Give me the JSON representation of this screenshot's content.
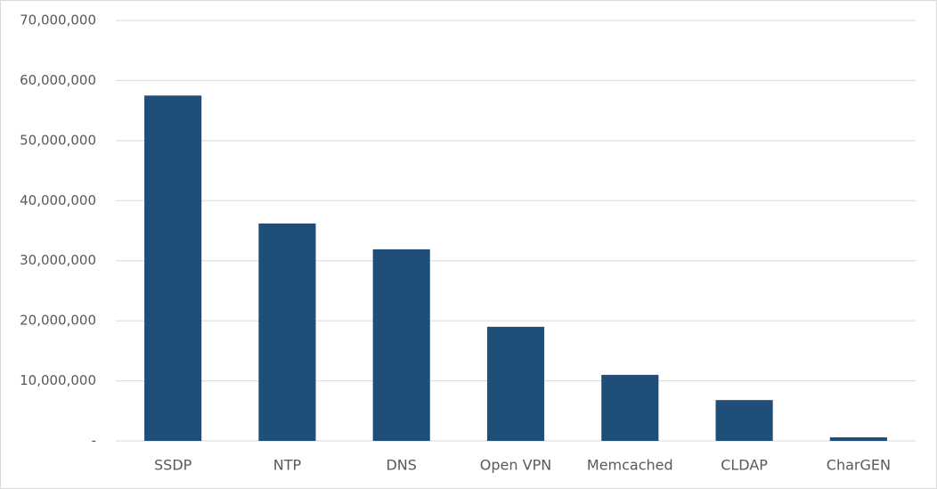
{
  "chart_data": {
    "type": "bar",
    "categories": [
      "SSDP",
      "NTP",
      "DNS",
      "Open VPN",
      "Memcached",
      "CLDAP",
      "CharGEN"
    ],
    "values": [
      57500000,
      36200000,
      31900000,
      19000000,
      11000000,
      6800000,
      600000
    ],
    "color": "#1f4e79",
    "ylim": [
      0,
      70000000
    ],
    "yticks": [
      {
        "value": 0,
        "label": "-"
      },
      {
        "value": 10000000,
        "label": "10,000,000"
      },
      {
        "value": 20000000,
        "label": "20,000,000"
      },
      {
        "value": 30000000,
        "label": "30,000,000"
      },
      {
        "value": 40000000,
        "label": "40,000,000"
      },
      {
        "value": 50000000,
        "label": "50,000,000"
      },
      {
        "value": 60000000,
        "label": "60,000,000"
      },
      {
        "value": 70000000,
        "label": "70,000,000"
      }
    ],
    "grid": true
  }
}
